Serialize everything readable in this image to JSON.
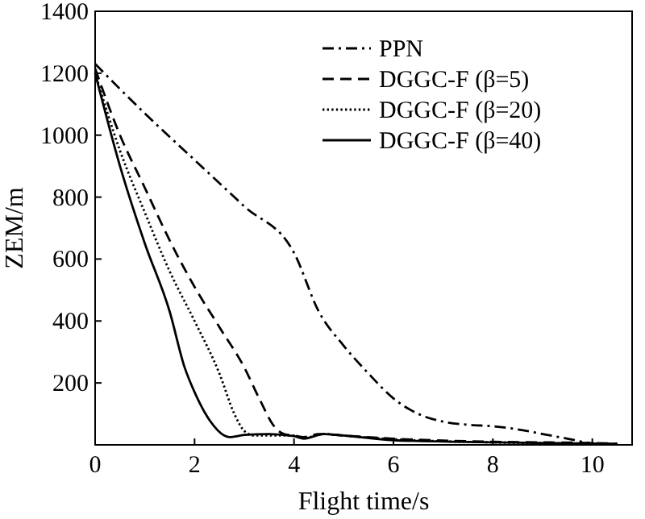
{
  "chart_data": {
    "type": "line",
    "xlabel": "Flight time/s",
    "ylabel": "ZEM/m",
    "xlim": [
      0,
      10.8
    ],
    "ylim": [
      0,
      1400
    ],
    "xticks": [
      0,
      2,
      4,
      6,
      8,
      10
    ],
    "yticks": [
      200,
      400,
      600,
      800,
      1000,
      1200,
      1400
    ],
    "legend": "top right",
    "grid": false,
    "series": [
      {
        "name": "PPN",
        "color": "#000000",
        "line_style": "dashdot",
        "x": [
          0,
          1,
          2,
          3,
          4,
          4.5,
          5,
          5.5,
          6,
          6.5,
          7,
          7.5,
          8,
          8.5,
          9,
          9.5,
          10,
          10.5
        ],
        "values": [
          1230,
          1070,
          920,
          770,
          620,
          430,
          320,
          230,
          150,
          100,
          75,
          65,
          60,
          50,
          35,
          20,
          5,
          2
        ]
      },
      {
        "name": "DGGC-F (β=5)",
        "color": "#000000",
        "line_style": "dashed",
        "x": [
          0,
          0.5,
          1,
          1.5,
          2,
          2.5,
          3,
          3.3,
          3.6,
          3.8,
          4,
          4.2,
          4.5,
          5,
          6,
          8,
          10,
          10.5
        ],
        "values": [
          1215,
          1000,
          830,
          660,
          510,
          380,
          250,
          150,
          60,
          35,
          30,
          25,
          35,
          30,
          20,
          10,
          6,
          4
        ]
      },
      {
        "name": "DGGC-F (β=20)",
        "color": "#000000",
        "line_style": "dotted",
        "x": [
          0,
          0.5,
          1,
          1.5,
          2,
          2.5,
          2.8,
          3,
          3.2,
          4,
          4.2,
          4.6,
          5,
          6,
          8,
          10,
          10.5
        ],
        "values": [
          1200,
          950,
          750,
          560,
          400,
          230,
          100,
          45,
          30,
          30,
          22,
          35,
          30,
          18,
          8,
          4,
          3
        ]
      },
      {
        "name": "DGGC-F (β=40)",
        "color": "#000000",
        "line_style": "solid",
        "x": [
          0,
          0.5,
          1,
          1.5,
          1.8,
          2,
          2.3,
          2.6,
          2.7,
          3,
          3.5,
          4,
          4.2,
          4.6,
          5,
          6,
          8,
          10,
          10.5
        ],
        "values": [
          1200,
          900,
          650,
          430,
          250,
          170,
          80,
          30,
          25,
          32,
          35,
          28,
          20,
          35,
          30,
          15,
          8,
          4,
          3
        ]
      }
    ]
  }
}
